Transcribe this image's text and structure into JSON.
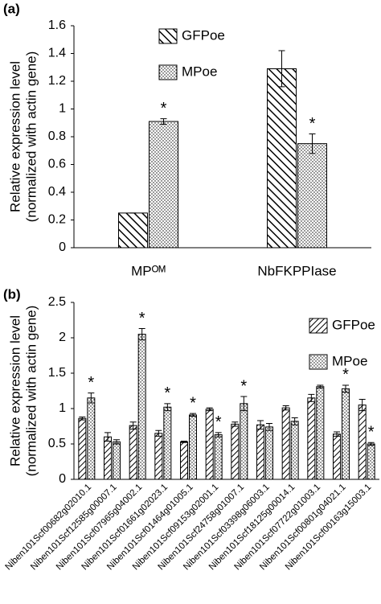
{
  "chart_data": [
    {
      "type": "bar",
      "panel_label": "(a)",
      "ylabel": [
        "Relative expression level",
        "(normalized with actin gene)"
      ],
      "categories": [
        "MPᴼᴹ",
        "NbFKPPIase"
      ],
      "series": [
        {
          "name": "GFPoe",
          "color": "#000000",
          "values": [
            0.25,
            1.29
          ],
          "errors": [
            0.0,
            0.13
          ],
          "annotations": [
            null,
            null
          ]
        },
        {
          "name": "MPoe",
          "color": "#000000",
          "values": [
            0.91,
            0.75
          ],
          "errors": [
            0.02,
            0.07
          ],
          "annotations": [
            "*",
            "*"
          ]
        }
      ],
      "ylim": [
        0,
        1.6
      ],
      "yticks": [
        0,
        0.2,
        0.4,
        0.6,
        0.8,
        1,
        1.2,
        1.4,
        1.6
      ],
      "grid": false,
      "legend": "top"
    },
    {
      "type": "bar",
      "panel_label": "(b)",
      "ylabel": [
        "Relative expression level",
        "(normalized with actin gene)"
      ],
      "categories": [
        "Niben101Scf00682g02010.1",
        "Niben101Scf12585g00007.1",
        "Niben101Scf07965g04002.1",
        "Niben101Scf01661g02023.1",
        "Niben101Scf01464g01005.1",
        "Niben101Scf09153g02001.1",
        "Niben101Scf24758g01007.1",
        "Niben101Scf03398g06003.1",
        "Niben101Scf18125g00014.1",
        "Niben101Scf07722g01003.1",
        "Niben101Scf00801g04021.1",
        "Niben101Scf00163g15003.1"
      ],
      "series": [
        {
          "name": "GFPoe",
          "color": "#000000",
          "values": [
            0.86,
            0.6,
            0.76,
            0.65,
            0.53,
            0.99,
            0.78,
            0.77,
            1.01,
            1.15,
            0.64,
            1.05
          ],
          "errors": [
            0.02,
            0.06,
            0.05,
            0.04,
            0.01,
            0.02,
            0.03,
            0.06,
            0.03,
            0.05,
            0.03,
            0.08
          ],
          "annotations": [
            null,
            null,
            null,
            null,
            null,
            null,
            null,
            null,
            null,
            null,
            null,
            null
          ]
        },
        {
          "name": "MPoe",
          "color": "#000000",
          "values": [
            1.15,
            0.53,
            2.05,
            1.02,
            0.91,
            0.63,
            1.07,
            0.74,
            0.82,
            1.31,
            1.28,
            0.5
          ],
          "errors": [
            0.07,
            0.03,
            0.08,
            0.05,
            0.02,
            0.03,
            0.1,
            0.05,
            0.05,
            0.02,
            0.05,
            0.02
          ],
          "annotations": [
            "*",
            null,
            "*",
            "*",
            "*",
            "*",
            "*",
            null,
            null,
            null,
            "*",
            "*"
          ]
        }
      ],
      "ylim": [
        0,
        2.5
      ],
      "yticks": [
        0,
        0.5,
        1,
        1.5,
        2,
        2.5
      ],
      "grid": false,
      "legend": "top-right"
    }
  ]
}
